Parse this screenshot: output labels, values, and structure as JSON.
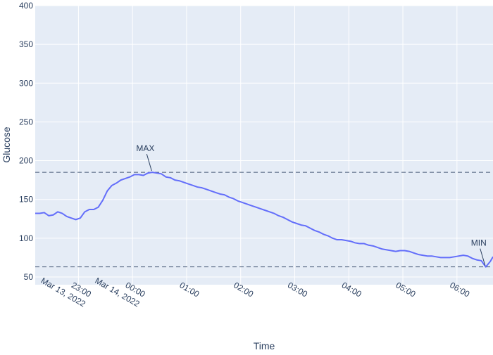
{
  "chart_data": {
    "type": "line",
    "title": "",
    "xlabel": "Time",
    "ylabel": "Glucose",
    "ylim": [
      40,
      400
    ],
    "xlim": [
      "2022-03-13 22:12",
      "2022-03-14 06:40"
    ],
    "x_ticks": [
      {
        "t": "2022-03-13 23:00",
        "label": "23:00",
        "sub": "Mar 13, 2022"
      },
      {
        "t": "2022-03-14 00:00",
        "label": "00:00",
        "sub": "Mar 14, 2022"
      },
      {
        "t": "2022-03-14 01:00",
        "label": "01:00",
        "sub": ""
      },
      {
        "t": "2022-03-14 02:00",
        "label": "02:00",
        "sub": ""
      },
      {
        "t": "2022-03-14 03:00",
        "label": "03:00",
        "sub": ""
      },
      {
        "t": "2022-03-14 04:00",
        "label": "04:00",
        "sub": ""
      },
      {
        "t": "2022-03-14 05:00",
        "label": "05:00",
        "sub": ""
      },
      {
        "t": "2022-03-14 06:00",
        "label": "06:00",
        "sub": ""
      }
    ],
    "y_ticks": [
      50,
      100,
      150,
      200,
      250,
      300,
      350,
      400
    ],
    "series": [
      {
        "color": "#636efa",
        "x": [
          "2022-03-13 22:12",
          "2022-03-13 22:17",
          "2022-03-13 22:22",
          "2022-03-13 22:27",
          "2022-03-13 22:32",
          "2022-03-13 22:37",
          "2022-03-13 22:42",
          "2022-03-13 22:47",
          "2022-03-13 22:52",
          "2022-03-13 22:57",
          "2022-03-13 23:02",
          "2022-03-13 23:07",
          "2022-03-13 23:12",
          "2022-03-13 23:17",
          "2022-03-13 23:22",
          "2022-03-13 23:27",
          "2022-03-13 23:32",
          "2022-03-13 23:37",
          "2022-03-13 23:42",
          "2022-03-13 23:47",
          "2022-03-13 23:52",
          "2022-03-13 23:57",
          "2022-03-14 00:02",
          "2022-03-14 00:07",
          "2022-03-14 00:12",
          "2022-03-14 00:17",
          "2022-03-14 00:22",
          "2022-03-14 00:27",
          "2022-03-14 00:32",
          "2022-03-14 00:37",
          "2022-03-14 00:42",
          "2022-03-14 00:47",
          "2022-03-14 00:52",
          "2022-03-14 00:57",
          "2022-03-14 01:02",
          "2022-03-14 01:07",
          "2022-03-14 01:12",
          "2022-03-14 01:17",
          "2022-03-14 01:22",
          "2022-03-14 01:27",
          "2022-03-14 01:32",
          "2022-03-14 01:37",
          "2022-03-14 01:42",
          "2022-03-14 01:47",
          "2022-03-14 01:52",
          "2022-03-14 01:57",
          "2022-03-14 02:02",
          "2022-03-14 02:07",
          "2022-03-14 02:12",
          "2022-03-14 02:17",
          "2022-03-14 02:22",
          "2022-03-14 02:27",
          "2022-03-14 02:32",
          "2022-03-14 02:37",
          "2022-03-14 02:42",
          "2022-03-14 02:47",
          "2022-03-14 02:52",
          "2022-03-14 02:57",
          "2022-03-14 03:02",
          "2022-03-14 03:07",
          "2022-03-14 03:12",
          "2022-03-14 03:17",
          "2022-03-14 03:22",
          "2022-03-14 03:27",
          "2022-03-14 03:32",
          "2022-03-14 03:37",
          "2022-03-14 03:42",
          "2022-03-14 03:47",
          "2022-03-14 03:52",
          "2022-03-14 03:57",
          "2022-03-14 04:02",
          "2022-03-14 04:07",
          "2022-03-14 04:12",
          "2022-03-14 04:17",
          "2022-03-14 04:22",
          "2022-03-14 04:27",
          "2022-03-14 04:32",
          "2022-03-14 04:37",
          "2022-03-14 04:42",
          "2022-03-14 04:47",
          "2022-03-14 04:52",
          "2022-03-14 04:57",
          "2022-03-14 05:02",
          "2022-03-14 05:07",
          "2022-03-14 05:12",
          "2022-03-14 05:17",
          "2022-03-14 05:22",
          "2022-03-14 05:27",
          "2022-03-14 05:32",
          "2022-03-14 05:37",
          "2022-03-14 05:42",
          "2022-03-14 05:47",
          "2022-03-14 05:52",
          "2022-03-14 05:57",
          "2022-03-14 06:02",
          "2022-03-14 06:07",
          "2022-03-14 06:12",
          "2022-03-14 06:17",
          "2022-03-14 06:22",
          "2022-03-14 06:27",
          "2022-03-14 06:32",
          "2022-03-14 06:37",
          "2022-03-14 06:40"
        ],
        "y": [
          132,
          132,
          133,
          129,
          130,
          134,
          132,
          128,
          126,
          124,
          126,
          134,
          137,
          137,
          140,
          149,
          161,
          168,
          171,
          175,
          177,
          179,
          182,
          182,
          181,
          184,
          185,
          184,
          183,
          179,
          178,
          175,
          174,
          172,
          170,
          168,
          166,
          165,
          163,
          161,
          159,
          157,
          156,
          153,
          151,
          148,
          146,
          144,
          142,
          140,
          138,
          136,
          134,
          132,
          129,
          127,
          124,
          121,
          119,
          117,
          116,
          113,
          110,
          108,
          105,
          103,
          100,
          98,
          98,
          97,
          96,
          94,
          93,
          93,
          91,
          90,
          88,
          86,
          85,
          84,
          83,
          84,
          84,
          83,
          81,
          79,
          78,
          77,
          77,
          76,
          75,
          75,
          75,
          76,
          77,
          78,
          77,
          74,
          72,
          71,
          63,
          70,
          76
        ]
      }
    ],
    "reference_lines": [
      185,
      63
    ],
    "annotations": [
      {
        "text": "MAX",
        "x": "2022-03-14 00:22",
        "y": 185
      },
      {
        "text": "MIN",
        "x": "2022-03-14 06:32",
        "y": 63
      }
    ],
    "grid": true,
    "legend": "none"
  }
}
